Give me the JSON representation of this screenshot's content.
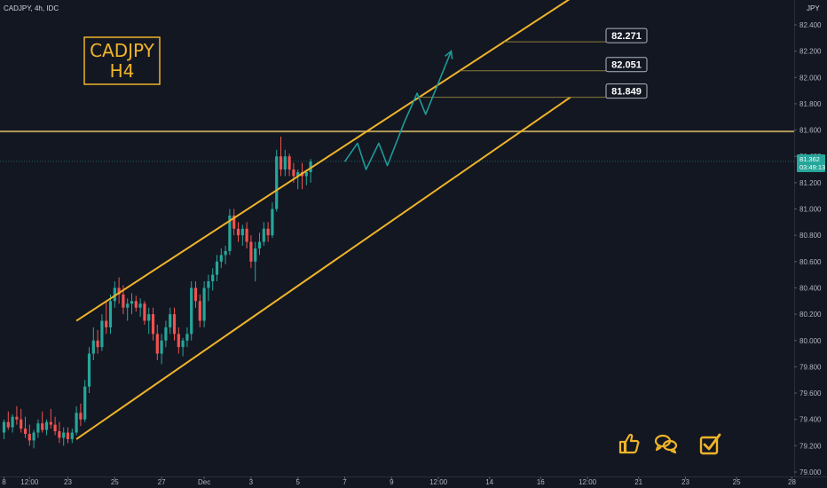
{
  "header": {
    "symbol_line": "CADJPY, 4h, IDC",
    "currency": "JPY"
  },
  "title_box": {
    "line1": "CADJPY",
    "line2": "H4"
  },
  "price_tag": {
    "price": "81.362",
    "countdown": "03:49:13"
  },
  "colors": {
    "background": "#131722",
    "up": "#26a69a",
    "down": "#ef5350",
    "channel": "#f0b429",
    "resistance": "#b39a58",
    "projection": "#1e9c96",
    "target_line": "#8a7a3a",
    "current_price_line": "#26a69a"
  },
  "icons": [
    "thumbs-up-icon",
    "comments-icon",
    "checkbox-check-icon"
  ],
  "chart_data": {
    "type": "candlestick",
    "y_axis": {
      "min": 79.0,
      "max": 82.5,
      "ticks": [
        79.0,
        79.2,
        79.4,
        79.6,
        79.8,
        80.0,
        80.2,
        80.4,
        80.6,
        80.8,
        81.0,
        81.2,
        81.4,
        81.6,
        81.8,
        82.0,
        82.2,
        82.4
      ],
      "tick_labels": [
        "79.000",
        "79.200",
        "79.400",
        "79.600",
        "79.800",
        "80.000",
        "80.200",
        "80.400",
        "80.600",
        "80.800",
        "81.000",
        "81.200",
        "81.400",
        "81.600",
        "81.800",
        "82.000",
        "82.200",
        "82.400"
      ]
    },
    "x_axis": {
      "tick_labels": [
        "8",
        "12:00",
        "23",
        "25",
        "27",
        "Dec",
        "3",
        "5",
        "7",
        "9",
        "12:00",
        "14",
        "16",
        "12:00",
        "21",
        "23",
        "25",
        "28"
      ],
      "tick_bar_index": [
        0,
        6,
        15,
        26,
        37,
        47,
        58,
        69,
        80,
        91,
        102,
        114,
        126,
        137,
        149,
        160,
        172,
        185
      ]
    },
    "candles": [
      [
        79.3,
        79.4,
        79.25,
        79.38
      ],
      [
        79.38,
        79.46,
        79.32,
        79.34
      ],
      [
        79.34,
        79.44,
        79.3,
        79.42
      ],
      [
        79.42,
        79.5,
        79.36,
        79.4
      ],
      [
        79.4,
        79.48,
        79.3,
        79.33
      ],
      [
        79.33,
        79.42,
        79.26,
        79.29
      ],
      [
        79.29,
        79.36,
        79.2,
        79.24
      ],
      [
        79.24,
        79.32,
        79.18,
        79.3
      ],
      [
        79.3,
        79.4,
        79.26,
        79.37
      ],
      [
        79.37,
        79.46,
        79.3,
        79.32
      ],
      [
        79.32,
        79.4,
        79.28,
        79.38
      ],
      [
        79.38,
        79.48,
        79.33,
        79.36
      ],
      [
        79.36,
        79.42,
        79.28,
        79.31
      ],
      [
        79.31,
        79.38,
        79.22,
        79.26
      ],
      [
        79.26,
        79.34,
        79.2,
        79.3
      ],
      [
        79.3,
        79.34,
        79.22,
        79.25
      ],
      [
        79.25,
        79.33,
        79.22,
        79.3
      ],
      [
        79.3,
        79.5,
        79.28,
        79.45
      ],
      [
        79.45,
        79.52,
        79.35,
        79.4
      ],
      [
        79.4,
        79.7,
        79.38,
        79.65
      ],
      [
        79.65,
        79.95,
        79.6,
        79.9
      ],
      [
        79.9,
        80.1,
        79.85,
        80.0
      ],
      [
        80.0,
        80.08,
        79.9,
        79.95
      ],
      [
        79.95,
        80.2,
        79.92,
        80.15
      ],
      [
        80.15,
        80.3,
        80.05,
        80.1
      ],
      [
        80.1,
        80.35,
        80.05,
        80.3
      ],
      [
        80.3,
        80.45,
        80.25,
        80.4
      ],
      [
        80.4,
        80.48,
        80.28,
        80.35
      ],
      [
        80.35,
        80.42,
        80.2,
        80.25
      ],
      [
        80.25,
        80.32,
        80.15,
        80.28
      ],
      [
        80.28,
        80.36,
        80.2,
        80.3
      ],
      [
        80.3,
        80.34,
        80.22,
        80.25
      ],
      [
        80.25,
        80.32,
        80.18,
        80.28
      ],
      [
        80.28,
        80.3,
        80.12,
        80.15
      ],
      [
        80.15,
        80.25,
        80.05,
        80.2
      ],
      [
        80.2,
        80.25,
        80.0,
        80.05
      ],
      [
        80.05,
        80.12,
        79.85,
        79.9
      ],
      [
        79.9,
        80.05,
        79.82,
        80.0
      ],
      [
        80.0,
        80.15,
        79.95,
        80.1
      ],
      [
        80.1,
        80.25,
        80.05,
        80.2
      ],
      [
        80.2,
        80.25,
        80.0,
        80.05
      ],
      [
        80.05,
        80.1,
        79.9,
        79.95
      ],
      [
        79.95,
        80.02,
        79.88,
        80.0
      ],
      [
        80.0,
        80.1,
        79.95,
        80.05
      ],
      [
        80.05,
        80.45,
        80.0,
        80.4
      ],
      [
        80.4,
        80.45,
        80.25,
        80.3
      ],
      [
        80.3,
        80.35,
        80.1,
        80.15
      ],
      [
        80.15,
        80.45,
        80.1,
        80.4
      ],
      [
        80.4,
        80.5,
        80.3,
        80.45
      ],
      [
        80.45,
        80.55,
        80.38,
        80.5
      ],
      [
        80.5,
        80.65,
        80.45,
        80.6
      ],
      [
        80.6,
        80.7,
        80.55,
        80.65
      ],
      [
        80.65,
        80.72,
        80.58,
        80.68
      ],
      [
        80.68,
        81.0,
        80.65,
        80.95
      ],
      [
        80.95,
        81.0,
        80.8,
        80.85
      ],
      [
        80.85,
        80.9,
        80.75,
        80.8
      ],
      [
        80.8,
        80.88,
        80.72,
        80.85
      ],
      [
        80.85,
        80.9,
        80.7,
        80.75
      ],
      [
        80.75,
        80.8,
        80.55,
        80.6
      ],
      [
        80.6,
        80.75,
        80.45,
        80.7
      ],
      [
        80.7,
        80.82,
        80.65,
        80.75
      ],
      [
        80.75,
        80.9,
        80.72,
        80.85
      ],
      [
        80.85,
        80.9,
        80.75,
        80.8
      ],
      [
        80.8,
        81.05,
        80.78,
        81.0
      ],
      [
        81.0,
        81.45,
        80.98,
        81.4
      ],
      [
        81.4,
        81.55,
        81.25,
        81.3
      ],
      [
        81.3,
        81.45,
        81.25,
        81.4
      ],
      [
        81.4,
        81.42,
        81.25,
        81.3
      ],
      [
        81.3,
        81.35,
        81.2,
        81.25
      ],
      [
        81.25,
        81.3,
        81.15,
        81.28
      ],
      [
        81.28,
        81.35,
        81.15,
        81.25
      ],
      [
        81.25,
        81.3,
        81.18,
        81.28
      ],
      [
        81.28,
        81.38,
        81.2,
        81.36
      ]
    ],
    "current_price": 81.362,
    "resistance_level": 81.59,
    "targets": [
      81.849,
      82.051,
      82.271
    ],
    "channel": {
      "upper": [
        [
          17,
          80.15
        ],
        [
          133,
          82.6
        ]
      ],
      "lower": [
        [
          17,
          79.25
        ],
        [
          133,
          81.85
        ]
      ]
    },
    "projection_path": [
      [
        80,
        81.36
      ],
      [
        83,
        81.5
      ],
      [
        85,
        81.3
      ],
      [
        88,
        81.5
      ],
      [
        90,
        81.33
      ],
      [
        94,
        81.66
      ],
      [
        97,
        81.88
      ],
      [
        99,
        81.72
      ],
      [
        105,
        82.2
      ]
    ]
  }
}
